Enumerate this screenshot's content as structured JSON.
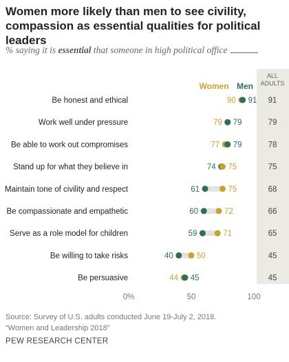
{
  "title": "Women more likely than men to see civility, compassion as essential qualities for political leaders",
  "subtitle_prefix": "% saying it is ",
  "subtitle_bold": "essential",
  "subtitle_suffix": " that someone in high political office",
  "colors": {
    "women": "#c9a22f",
    "men": "#2e6e5a",
    "bar": "#e2e2e2",
    "all_adults_bg": "#ebebe4",
    "label": "#222222",
    "axis": "#777777"
  },
  "chart_data": {
    "type": "dot",
    "series": [
      {
        "name": "Women",
        "values": [
          90,
          79,
          77,
          75,
          75,
          72,
          71,
          50,
          44
        ]
      },
      {
        "name": "Men",
        "values": [
          91,
          79,
          79,
          74,
          61,
          60,
          59,
          40,
          45
        ]
      },
      {
        "name": "ALL ADULTS",
        "values": [
          91,
          79,
          78,
          75,
          68,
          66,
          65,
          45,
          45
        ]
      }
    ],
    "categories": [
      "Be honest and ethical",
      "Work well under pressure",
      "Be able to work out compromises",
      "Stand up for what they believe in",
      "Maintain tone of civility and respect",
      "Be compassionate and empathetic",
      "Serve as a role model for children",
      "Be willing to take risks",
      "Be persuasive"
    ],
    "legend": {
      "women": "Women",
      "men": "Men"
    },
    "all_adults_header": [
      "ALL",
      "ADULTS"
    ],
    "xlim": [
      0,
      100
    ],
    "xticks": [
      0,
      50,
      100
    ],
    "xtick_labels": [
      "0%",
      "50",
      "100"
    ]
  },
  "footer": {
    "source": "Source: Survey of U.S. adults conducted June 19-July 2, 2018.",
    "report": "“Women and Leadership 2018”"
  },
  "brand": "PEW RESEARCH CENTER"
}
